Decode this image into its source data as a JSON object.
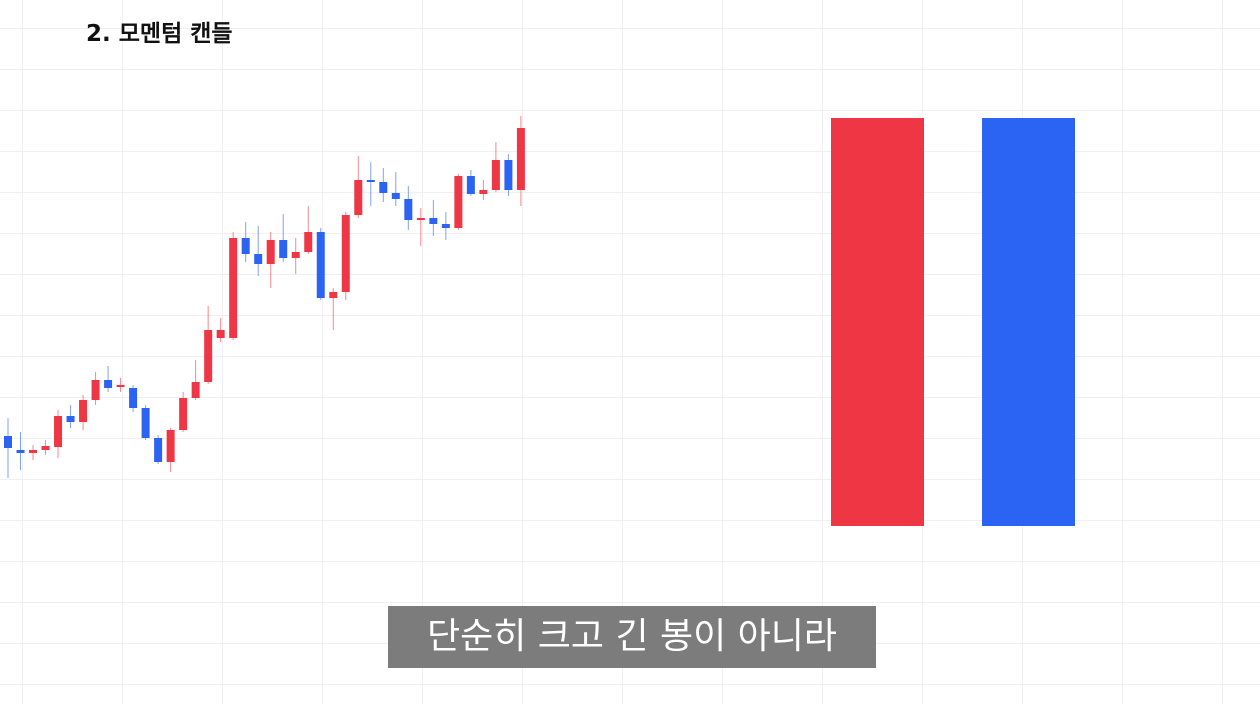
{
  "chart_data": {
    "type": "candlestick",
    "title": "2. 모멘텀 캔들",
    "subtitle": "단순히 크고 긴 봉이 아니라",
    "up_color": "#ef3644",
    "down_color": "#2b63f3",
    "ylim": [
      -104,
      600
    ],
    "open": [
      164,
      150,
      147,
      150,
      153,
      184,
      178,
      200,
      220,
      213,
      212,
      192,
      162,
      138,
      170,
      202,
      218,
      262,
      262,
      362,
      346,
      336,
      360,
      342,
      348,
      368,
      302,
      308,
      385,
      420,
      418,
      407,
      401,
      380,
      382,
      376,
      372,
      424,
      406,
      410,
      440,
      410
    ],
    "high": [
      182,
      168,
      155,
      160,
      190,
      195,
      205,
      228,
      234,
      222,
      215,
      195,
      165,
      172,
      208,
      240,
      294,
      282,
      368,
      378,
      374,
      368,
      386,
      362,
      394,
      372,
      312,
      388,
      444,
      438,
      432,
      428,
      414,
      392,
      400,
      388,
      426,
      430,
      420,
      458,
      446,
      484
    ],
    "low": [
      122,
      130,
      140,
      145,
      142,
      172,
      170,
      195,
      208,
      208,
      188,
      160,
      136,
      128,
      168,
      200,
      216,
      258,
      260,
      338,
      324,
      312,
      338,
      326,
      346,
      300,
      270,
      300,
      382,
      394,
      398,
      394,
      370,
      354,
      364,
      360,
      370,
      404,
      400,
      408,
      404,
      394
    ],
    "close": [
      152,
      147,
      150,
      154,
      184,
      178,
      200,
      220,
      212,
      215,
      192,
      162,
      138,
      170,
      202,
      218,
      270,
      270,
      362,
      346,
      336,
      360,
      342,
      348,
      368,
      302,
      308,
      385,
      420,
      418,
      407,
      401,
      380,
      382,
      376,
      372,
      424,
      406,
      410,
      440,
      410,
      472
    ]
  }
}
